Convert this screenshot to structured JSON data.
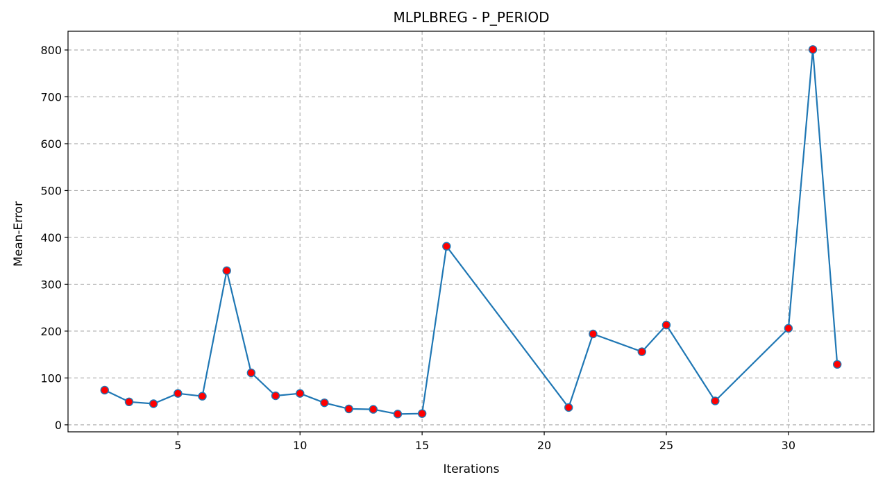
{
  "chart_data": {
    "type": "line",
    "title": "MLPLBREG - P_PERIOD",
    "xlabel": "Iterations",
    "ylabel": "Mean-Error",
    "xlim": [
      0.5,
      33.5
    ],
    "ylim": [
      -15,
      840
    ],
    "xticks": [
      5,
      10,
      15,
      20,
      25,
      30
    ],
    "yticks": [
      0,
      100,
      200,
      300,
      400,
      500,
      600,
      700,
      800
    ],
    "grid": true,
    "series": [
      {
        "line_color": "#1f77b4",
        "marker_color": "#ff0000",
        "x": [
          2,
          3,
          4,
          5,
          6,
          7,
          8,
          9,
          10,
          11,
          12,
          13,
          14,
          15,
          16,
          21,
          22,
          24,
          25,
          27,
          30,
          31,
          32
        ],
        "y": [
          74,
          49,
          45,
          67,
          61,
          329,
          111,
          62,
          67,
          47,
          34,
          33,
          23,
          24,
          381,
          37,
          194,
          156,
          213,
          51,
          206,
          801,
          129
        ]
      }
    ]
  }
}
